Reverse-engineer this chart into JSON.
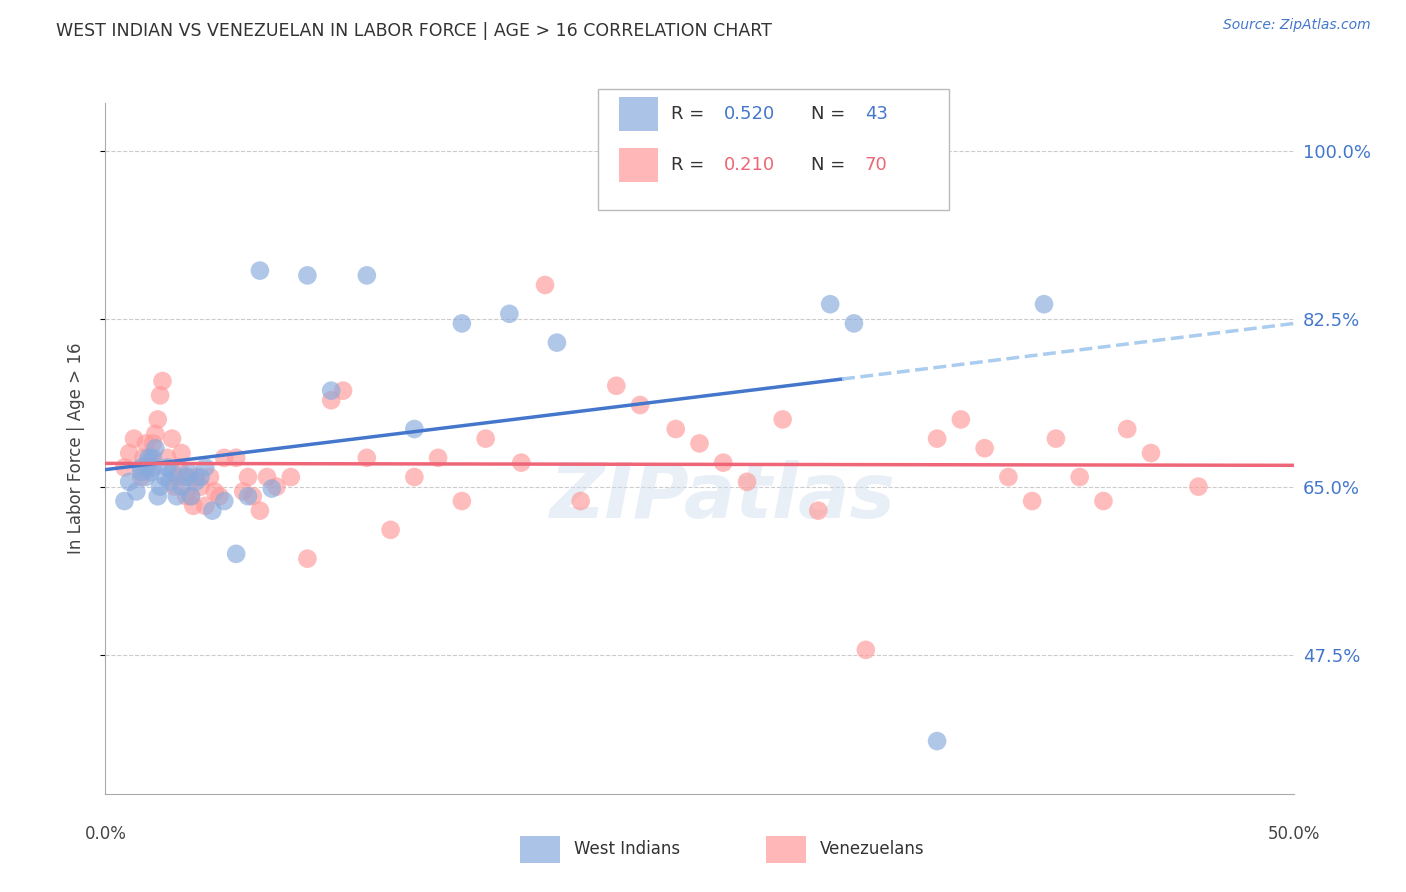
{
  "title": "WEST INDIAN VS VENEZUELAN IN LABOR FORCE | AGE > 16 CORRELATION CHART",
  "source": "Source: ZipAtlas.com",
  "ylabel": "In Labor Force | Age > 16",
  "yticks": [
    1.0,
    0.825,
    0.65,
    0.475
  ],
  "ytick_labels": [
    "100.0%",
    "82.5%",
    "65.0%",
    "47.5%"
  ],
  "xlim": [
    0.0,
    0.5
  ],
  "ylim": [
    0.33,
    1.05
  ],
  "west_indians_color": "#88AADD",
  "venezuelans_color": "#FF9999",
  "regression_blue": "#4477CC",
  "regression_pink": "#EE6677",
  "regression_dashed_color": "#AACCEE",
  "background_color": "#FFFFFF",
  "grid_color": "#CCCCCC",
  "title_color": "#333333",
  "axis_label_color": "#444444",
  "ytick_color": "#4477CC",
  "west_indians_x": [
    0.008,
    0.01,
    0.013,
    0.015,
    0.015,
    0.017,
    0.018,
    0.018,
    0.019,
    0.02,
    0.02,
    0.021,
    0.022,
    0.023,
    0.025,
    0.026,
    0.027,
    0.028,
    0.03,
    0.032,
    0.034,
    0.035,
    0.036,
    0.038,
    0.04,
    0.042,
    0.045,
    0.05,
    0.055,
    0.06,
    0.065,
    0.07,
    0.085,
    0.095,
    0.11,
    0.13,
    0.15,
    0.17,
    0.19,
    0.305,
    0.315,
    0.35,
    0.395
  ],
  "west_indians_y": [
    0.635,
    0.655,
    0.645,
    0.665,
    0.67,
    0.66,
    0.675,
    0.68,
    0.665,
    0.67,
    0.68,
    0.69,
    0.64,
    0.65,
    0.66,
    0.67,
    0.655,
    0.665,
    0.64,
    0.65,
    0.66,
    0.665,
    0.64,
    0.655,
    0.66,
    0.67,
    0.625,
    0.635,
    0.58,
    0.64,
    0.875,
    0.648,
    0.87,
    0.75,
    0.87,
    0.71,
    0.82,
    0.83,
    0.8,
    0.84,
    0.82,
    0.385,
    0.84
  ],
  "venezuelans_x": [
    0.008,
    0.01,
    0.012,
    0.015,
    0.016,
    0.017,
    0.018,
    0.019,
    0.02,
    0.021,
    0.022,
    0.023,
    0.024,
    0.026,
    0.028,
    0.029,
    0.03,
    0.031,
    0.032,
    0.034,
    0.035,
    0.036,
    0.037,
    0.038,
    0.04,
    0.042,
    0.044,
    0.046,
    0.048,
    0.05,
    0.055,
    0.058,
    0.06,
    0.062,
    0.065,
    0.068,
    0.072,
    0.078,
    0.085,
    0.095,
    0.1,
    0.11,
    0.12,
    0.13,
    0.14,
    0.15,
    0.16,
    0.175,
    0.185,
    0.2,
    0.215,
    0.225,
    0.24,
    0.25,
    0.26,
    0.27,
    0.285,
    0.3,
    0.32,
    0.35,
    0.36,
    0.37,
    0.38,
    0.39,
    0.4,
    0.41,
    0.42,
    0.43,
    0.44,
    0.46
  ],
  "venezuelans_y": [
    0.67,
    0.685,
    0.7,
    0.66,
    0.68,
    0.695,
    0.67,
    0.68,
    0.695,
    0.705,
    0.72,
    0.745,
    0.76,
    0.68,
    0.7,
    0.65,
    0.66,
    0.67,
    0.685,
    0.64,
    0.66,
    0.64,
    0.63,
    0.66,
    0.65,
    0.63,
    0.66,
    0.645,
    0.64,
    0.68,
    0.68,
    0.645,
    0.66,
    0.64,
    0.625,
    0.66,
    0.65,
    0.66,
    0.575,
    0.74,
    0.75,
    0.68,
    0.605,
    0.66,
    0.68,
    0.635,
    0.7,
    0.675,
    0.86,
    0.635,
    0.755,
    0.735,
    0.71,
    0.695,
    0.675,
    0.655,
    0.72,
    0.625,
    0.48,
    0.7,
    0.72,
    0.69,
    0.66,
    0.635,
    0.7,
    0.66,
    0.635,
    0.71,
    0.685,
    0.65
  ]
}
